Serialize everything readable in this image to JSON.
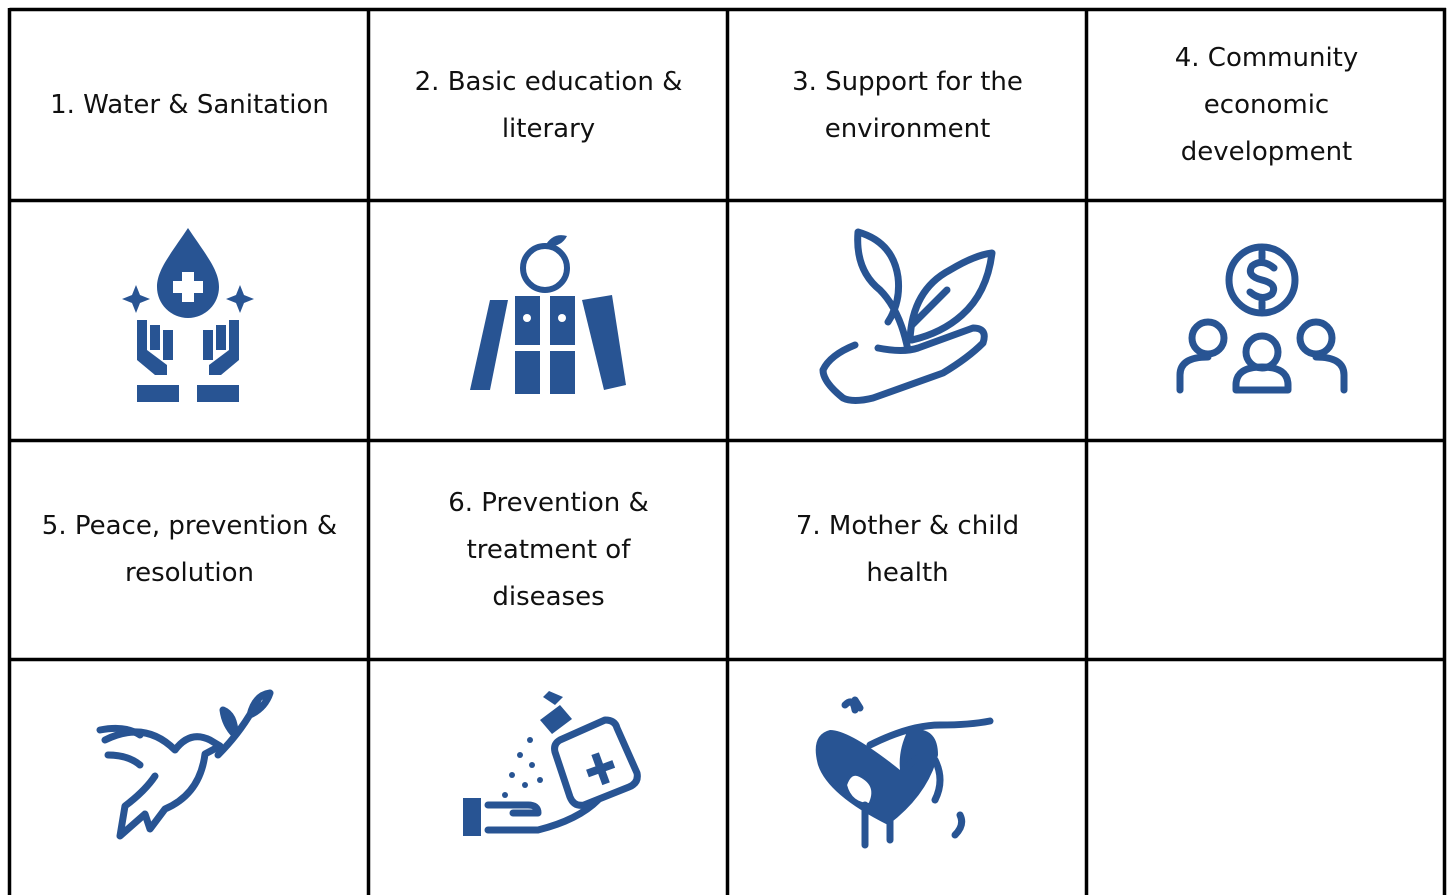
{
  "cells": [
    {
      "label": "1. Water & Sanitation"
    },
    {
      "label": "2. Basic education & literary"
    },
    {
      "label": "3. Support for the environment"
    },
    {
      "label": "4. Community economic development"
    },
    {
      "label": "5. Peace, prevention & resolution"
    },
    {
      "label": "6. Prevention & treatment of diseases"
    },
    {
      "label": "7. Mother & child health"
    }
  ]
}
